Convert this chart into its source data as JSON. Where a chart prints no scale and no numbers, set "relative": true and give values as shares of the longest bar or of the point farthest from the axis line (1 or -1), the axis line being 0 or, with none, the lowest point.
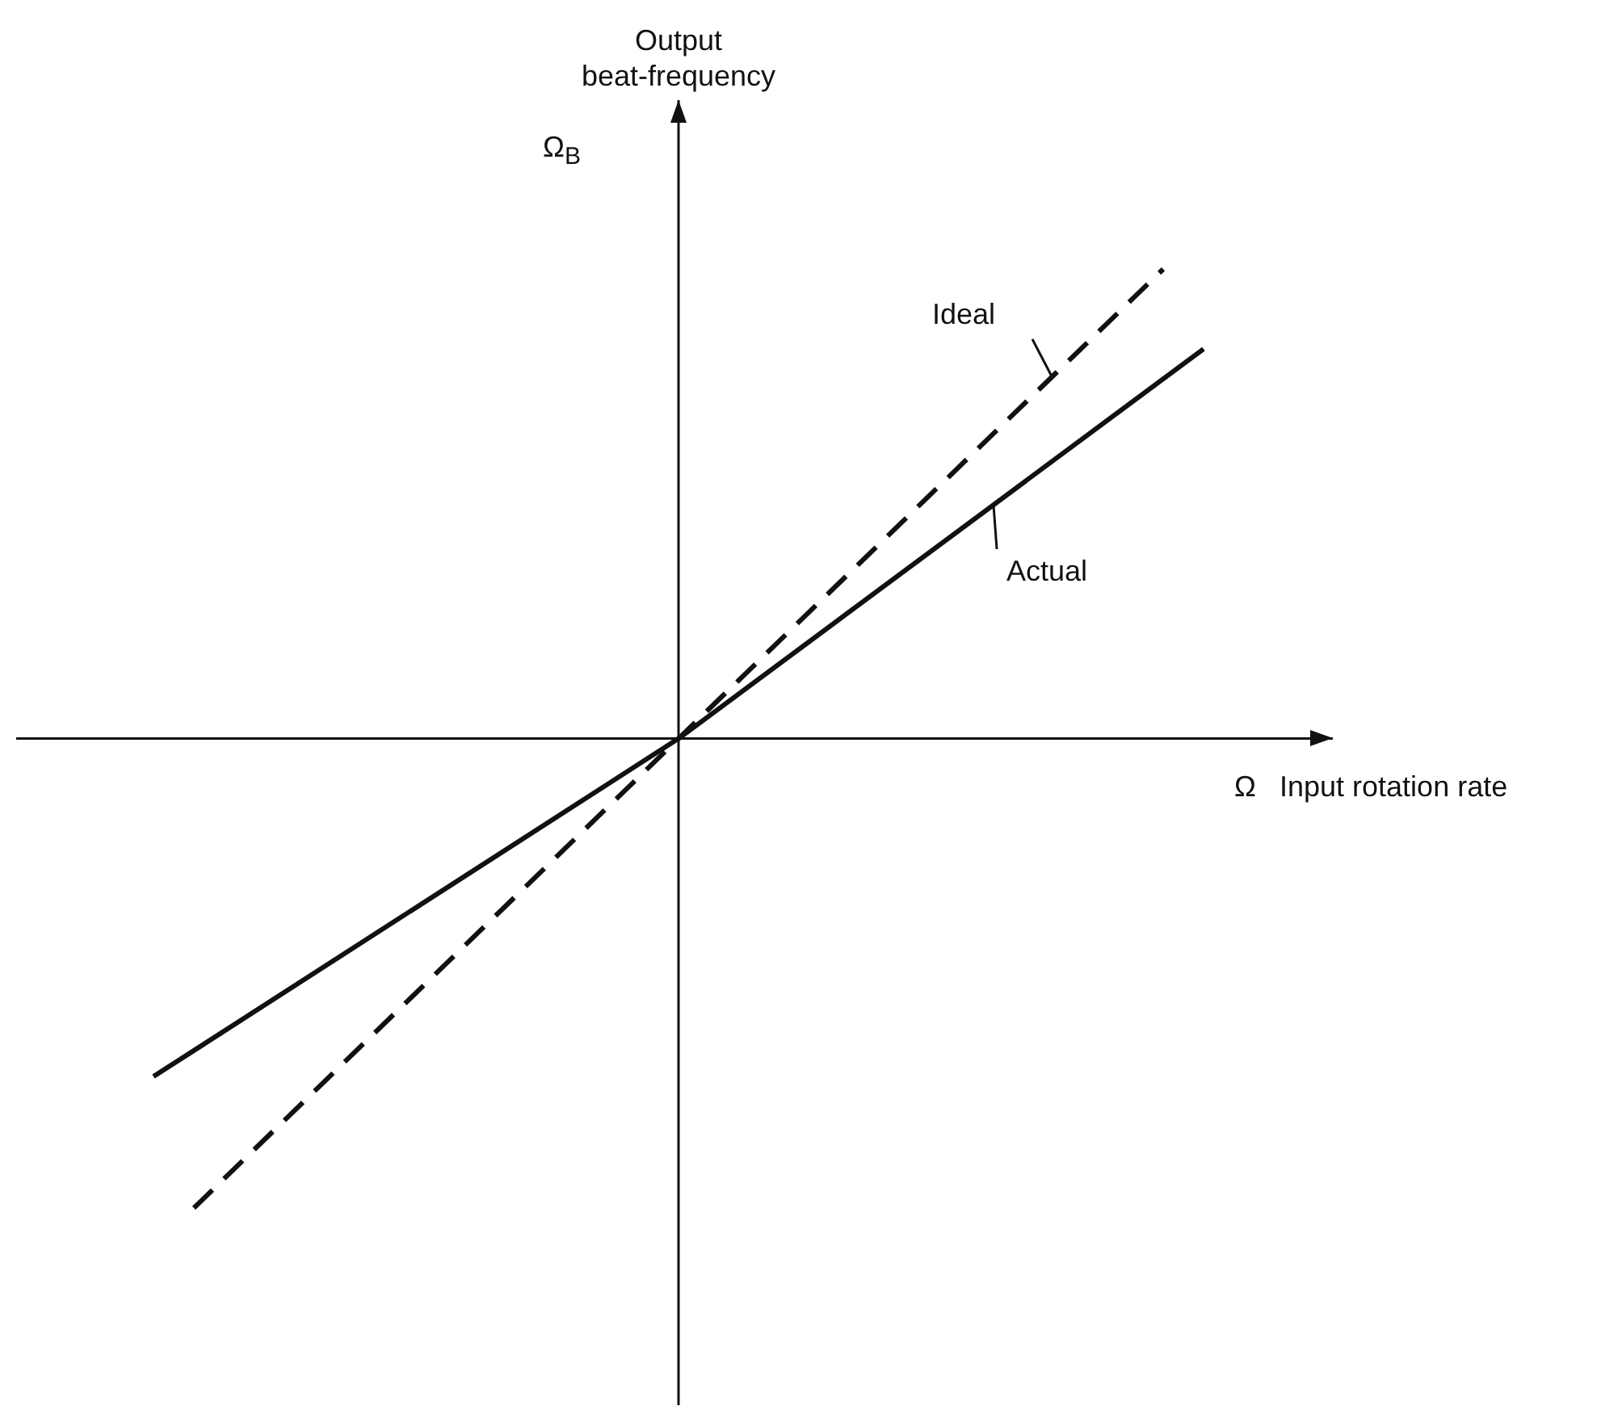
{
  "chart_data": {
    "type": "line",
    "relative": true,
    "xlabel": "Input rotation rate",
    "ylabel": "Ω$_{B}$",
    "annotations": [
      "Output beat-frequency",
      "Ω"
    ],
    "categories": [
      null,
      null,
      null,
      null,
      null,
      null,
      null,
      null,
      null,
      null,
      null,
      null,
      null,
      null,
      null,
      null,
      null,
      null,
      null,
      null,
      null,
      null,
      null,
      null,
      null,
      null,
      null
    ],
    "series": [
      {
        "name": "Ideal",
        "color": "#111111",
        "line_style": "dashed",
        "values": [
          null,
          -1,
          null,
          null,
          null,
          null,
          null,
          null,
          null,
          null,
          null,
          null,
          null,
          0,
          null,
          null,
          null,
          null,
          null,
          null,
          null,
          null,
          null,
          null,
          null,
          1,
          null
        ]
      },
      {
        "name": "Actual",
        "color": "#111111",
        "line_style": "solid",
        "values": [
          -0.72,
          null,
          null,
          null,
          null,
          null,
          null,
          null,
          null,
          null,
          null,
          null,
          null,
          0,
          null,
          null,
          null,
          null,
          null,
          null,
          null,
          null,
          null,
          null,
          null,
          null,
          0.83
        ]
      }
    ],
    "marker": "none"
  }
}
